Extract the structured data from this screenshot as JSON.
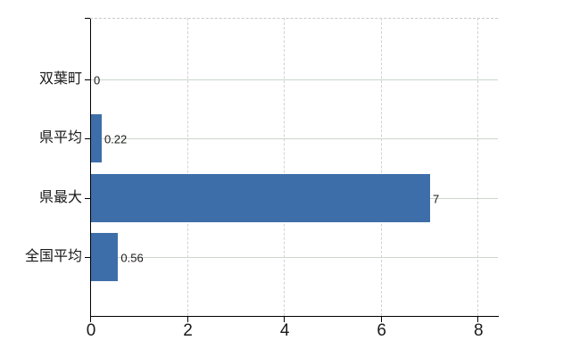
{
  "chart_data": {
    "type": "bar",
    "orientation": "horizontal",
    "title": "",
    "xlabel": "",
    "ylabel": "",
    "legend": "none",
    "categories": [
      "双葉町",
      "県平均",
      "県最大",
      "全国平均"
    ],
    "values": [
      0,
      0.22,
      7,
      0.56
    ],
    "value_labels": [
      "0",
      "0.22",
      "7",
      "0.56"
    ],
    "x_ticks": [
      0,
      2,
      4,
      6,
      8
    ],
    "x_tick_labels": [
      "0",
      "2",
      "4",
      "6",
      "8"
    ],
    "xlim": [
      0,
      8.4
    ],
    "grid": {
      "horizontal_lines": "solid line at each category center",
      "vertical_lines": "dashed line at each x tick"
    }
  },
  "colors": {
    "bar": "#3E6EA9",
    "axis": "#000000",
    "grid_horizontal": "#ccd6cc",
    "grid_vertical": "#d3cfd9",
    "plot_top_border": "#c9c9c9",
    "text": "#1a1a1a",
    "background": "#ffffff"
  }
}
